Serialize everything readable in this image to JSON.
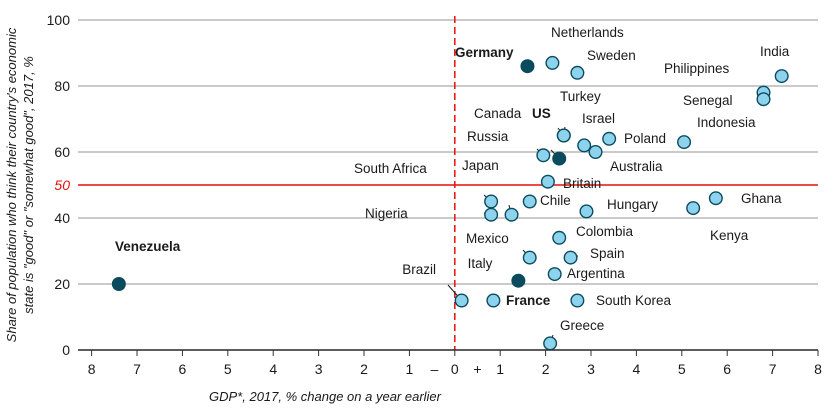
{
  "chart_data": {
    "type": "scatter",
    "title": "",
    "xlabel": "GDP*, 2017, % change on a year earlier",
    "ylabel_lines": [
      "Share of population who think their country's economic",
      "state is \"good\" or \"somewhat good\", 2017, %"
    ],
    "xlim": [
      -8.3,
      8
    ],
    "ylim": [
      0,
      100
    ],
    "x_ticks": [
      -8,
      -7,
      -6,
      -5,
      -4,
      -3,
      -2,
      -1,
      0,
      1,
      2,
      3,
      4,
      5,
      6,
      7,
      8
    ],
    "x_tick_labels": [
      "8",
      "7",
      "6",
      "5",
      "4",
      "3",
      "2",
      "1",
      "0",
      "1",
      "2",
      "3",
      "4",
      "5",
      "6",
      "7",
      "8"
    ],
    "x_sign_labels": {
      "minus": "–",
      "plus": "+"
    },
    "y_ticks": [
      0,
      20,
      40,
      60,
      80,
      100
    ],
    "y_tick_labels": [
      "0",
      "20",
      "40",
      "60",
      "80",
      "100"
    ],
    "grid": "horizontal",
    "reference_line": {
      "y": 50,
      "label": "50",
      "color": "#e3120b"
    },
    "zero_line": {
      "x": 0,
      "style": "dashed",
      "color": "#e3120b"
    },
    "colors": {
      "point_fill": "#8ed3ee",
      "highlight_fill": "#0b4b5e",
      "point_stroke": "#0b4b5e",
      "grid": "#b8b8b8",
      "text": "#1a1a1a"
    },
    "points": [
      {
        "name": "Venezuela",
        "x": -7.4,
        "y": 20,
        "highlight": true
      },
      {
        "name": "Brazil",
        "x": 0.15,
        "y": 15,
        "highlight": false
      },
      {
        "name": "Italy",
        "x": 0.85,
        "y": 15,
        "highlight": false
      },
      {
        "name": "France",
        "x": 1.4,
        "y": 21,
        "highlight": true
      },
      {
        "name": "Greece",
        "x": 2.1,
        "y": 2,
        "highlight": false
      },
      {
        "name": "South Korea",
        "x": 2.7,
        "y": 15,
        "highlight": false
      },
      {
        "name": "Argentina",
        "x": 2.2,
        "y": 23,
        "highlight": false
      },
      {
        "name": "Spain",
        "x": 2.55,
        "y": 28,
        "highlight": false
      },
      {
        "name": "Mexico",
        "x": 1.65,
        "y": 28,
        "highlight": false
      },
      {
        "name": "Colombia",
        "x": 2.3,
        "y": 34,
        "highlight": false
      },
      {
        "name": "Nigeria",
        "x": 0.8,
        "y": 41,
        "highlight": false
      },
      {
        "name": "Japan",
        "x": 1.25,
        "y": 41,
        "highlight": false
      },
      {
        "name": "South Africa",
        "x": 0.8,
        "y": 45,
        "highlight": false
      },
      {
        "name": "Chile",
        "x": 1.65,
        "y": 45,
        "highlight": false
      },
      {
        "name": "Hungary",
        "x": 2.9,
        "y": 42,
        "highlight": false
      },
      {
        "name": "Britain",
        "x": 2.05,
        "y": 51,
        "highlight": false
      },
      {
        "name": "Ghana",
        "x": 5.75,
        "y": 46,
        "highlight": false
      },
      {
        "name": "Kenya",
        "x": 5.25,
        "y": 43,
        "highlight": false
      },
      {
        "name": "Russia",
        "x": 1.95,
        "y": 59,
        "highlight": false
      },
      {
        "name": "US",
        "x": 2.3,
        "y": 58,
        "highlight": true
      },
      {
        "name": "Canada",
        "x": 2.4,
        "y": 65,
        "highlight": false
      },
      {
        "name": "Turkey",
        "x": 2.4,
        "y": 65,
        "highlight": false
      },
      {
        "name": "Israel",
        "x": 2.85,
        "y": 62,
        "highlight": false
      },
      {
        "name": "Australia",
        "x": 3.1,
        "y": 60,
        "highlight": false
      },
      {
        "name": "Poland",
        "x": 3.4,
        "y": 64,
        "highlight": false
      },
      {
        "name": "Indonesia",
        "x": 5.05,
        "y": 63,
        "highlight": false
      },
      {
        "name": "Germany",
        "x": 1.6,
        "y": 86,
        "highlight": true
      },
      {
        "name": "Netherlands",
        "x": 2.15,
        "y": 87,
        "highlight": false
      },
      {
        "name": "Sweden",
        "x": 2.7,
        "y": 84,
        "highlight": false
      },
      {
        "name": "India",
        "x": 7.2,
        "y": 83,
        "highlight": false
      },
      {
        "name": "Philippines",
        "x": 6.8,
        "y": 78,
        "highlight": false
      },
      {
        "name": "Senegal",
        "x": 6.8,
        "y": 76,
        "highlight": false
      }
    ]
  }
}
